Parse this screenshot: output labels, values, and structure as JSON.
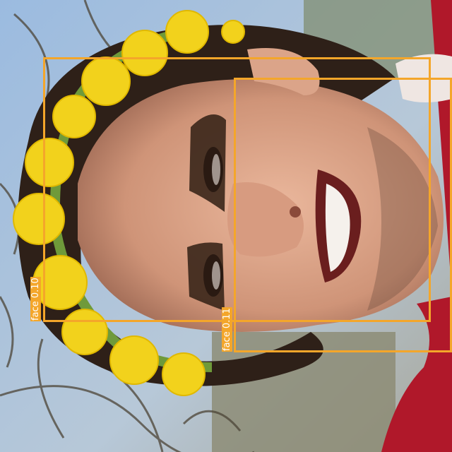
{
  "image": {
    "description_free": true,
    "colors": {
      "sky": "#8fb0d6",
      "skin": "#d8a88e",
      "hair": "#2e2018",
      "dandelion": "#f2d21c",
      "stem": "#6f9a3a",
      "shirt": "#b0182a",
      "box": "#f4a62a"
    }
  },
  "detections": [
    {
      "label": "face",
      "score": "0.10",
      "text": "face 0.10"
    },
    {
      "label": "face",
      "score": "0.11",
      "text": "face 0.11"
    }
  ]
}
